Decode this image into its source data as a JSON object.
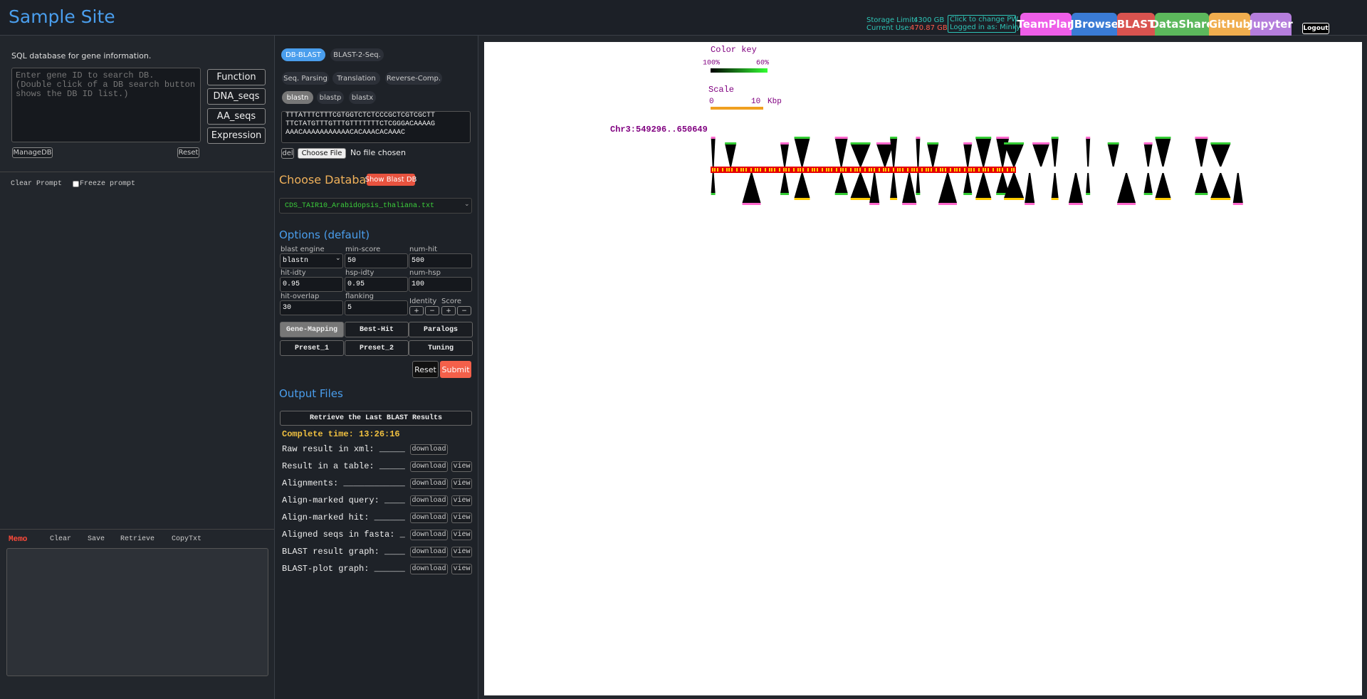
{
  "header": {
    "title": "Sample Site",
    "storage": {
      "limit_label": "Storage Limit:",
      "limit_value": "4300 GB",
      "use_label": "Current Use:",
      "use_value": "470.87 GB"
    },
    "account": {
      "change_pw": "Click to change PW",
      "logged_in": "Logged in as: Minkyu"
    },
    "nav": [
      "TeamPlan",
      "JBrowse",
      "BLAST",
      "DataShare",
      "GitHub",
      "Jupyter"
    ],
    "logout": "Logout"
  },
  "search": {
    "description": "SQL database for gene information.",
    "placeholder": "Enter gene ID to search DB.\n(Double click of a DB search button shows the DB ID list.)",
    "buttons": [
      "Function",
      "DNA_seqs",
      "AA_seqs",
      "Expression"
    ],
    "manage": "ManageDB",
    "reset": "Reset"
  },
  "prompt": {
    "clear": "Clear Prompt",
    "freeze": "Freeze prompt"
  },
  "memo": {
    "title": "Memo",
    "actions": [
      "Clear",
      "Save",
      "Retrieve",
      "CopyTxt"
    ]
  },
  "blast": {
    "tabs": [
      "DB-BLAST",
      "BLAST-2-Seq."
    ],
    "tools": [
      "Seq. Parsing",
      "Translation",
      "Reverse-Comp."
    ],
    "programs": [
      "blastn",
      "blastp",
      "blastx"
    ],
    "sequence": "TTTATTTCTTTCGTGGTCTCTCCCGCTCGTCGCTT\nTTCTATGTTTGTTTGTTTTTTTCTCGGGACAAAAG\nAAACAAAAAAAAAAACACAAACACAAAC",
    "del": "del",
    "choose_file": "Choose File",
    "no_file": "No file chosen",
    "database_heading": "Choose Database",
    "show_db": "Show Blast DB",
    "database": "CDS_TAIR10_Arabidopsis_thaliana.txt",
    "options_heading": "Options (default)",
    "fields": [
      {
        "label": "blast engine",
        "value": "blastn"
      },
      {
        "label": "min-score",
        "value": 50
      },
      {
        "label": "num-hit",
        "value": 500
      },
      {
        "label": "hit-idty",
        "value": 0.95
      },
      {
        "label": "hsp-idty",
        "value": 0.95
      },
      {
        "label": "num-hsp",
        "value": 100
      },
      {
        "label": "hit-overlap",
        "value": 30
      },
      {
        "label": "flanking",
        "value": 5
      }
    ],
    "adjust": [
      {
        "label": "Identity",
        "buttons": [
          "+",
          "−"
        ]
      },
      {
        "label": "Score",
        "buttons": [
          "+",
          "−"
        ]
      }
    ],
    "modes": [
      [
        "Gene-Mapping",
        "Best-Hit",
        "Paralogs"
      ],
      [
        "Preset_1",
        "Preset_2",
        "Tuning"
      ]
    ],
    "reset": "Reset",
    "submit": "Submit"
  },
  "output": {
    "heading": "Output Files",
    "retrieve": "Retrieve the Last BLAST Results",
    "complete": "Complete time: 13:26:16",
    "files": [
      {
        "label": "Raw result in xml: _____",
        "actions": [
          "download"
        ]
      },
      {
        "label": "Result in a table: _____",
        "actions": [
          "download",
          "view"
        ]
      },
      {
        "label": "Alignments: ____________",
        "actions": [
          "download",
          "view"
        ]
      },
      {
        "label": "Align-marked query: ____",
        "actions": [
          "download",
          "view"
        ]
      },
      {
        "label": "Align-marked hit: ______",
        "actions": [
          "download",
          "view"
        ]
      },
      {
        "label": "Aligned seqs in fasta: _",
        "actions": [
          "download",
          "view"
        ]
      },
      {
        "label": "BLAST result graph: ____",
        "actions": [
          "download",
          "view"
        ]
      },
      {
        "label": "BLAST-plot graph: ______",
        "actions": [
          "download",
          "view"
        ]
      }
    ]
  },
  "graph": {
    "color_key": "Color key",
    "key_high": "100%",
    "key_low": "60%",
    "scale": "Scale",
    "scale_start": 0,
    "scale_end": 10,
    "scale_unit": "Kbp",
    "region": "Chr3:549296..650649"
  }
}
